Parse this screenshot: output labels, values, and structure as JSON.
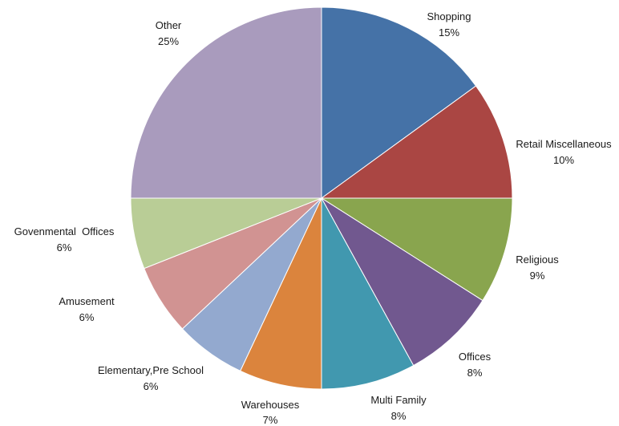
{
  "chart_data": {
    "type": "pie",
    "title": "",
    "slices": [
      {
        "label": "Shopping",
        "value": 15,
        "display": "15%",
        "color": "#4572A7"
      },
      {
        "label": "Retail Miscellaneous",
        "value": 10,
        "display": "10%",
        "color": "#AA4643"
      },
      {
        "label": "Religious",
        "value": 9,
        "display": "9%",
        "color": "#89A54E"
      },
      {
        "label": "Offices",
        "value": 8,
        "display": "8%",
        "color": "#71588F"
      },
      {
        "label": "Multi Family",
        "value": 8,
        "display": "8%",
        "color": "#4198AF"
      },
      {
        "label": "Warehouses",
        "value": 7,
        "display": "7%",
        "color": "#DB843D"
      },
      {
        "label": "Elementary,Pre School",
        "value": 6,
        "display": "6%",
        "color": "#93A9CF"
      },
      {
        "label": "Amusement",
        "value": 6,
        "display": "6%",
        "color": "#D19392"
      },
      {
        "label": "Govenmental  Offices",
        "value": 6,
        "display": "6%",
        "color": "#B9CD96"
      },
      {
        "label": "Other",
        "value": 25,
        "display": "25%",
        "color": "#A99BBD"
      }
    ]
  }
}
